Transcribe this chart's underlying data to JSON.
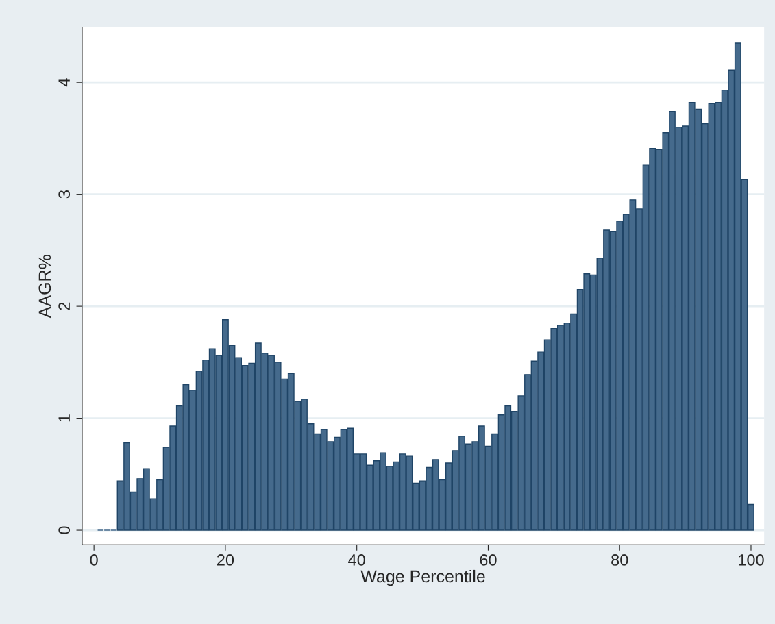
{
  "chart_data": {
    "type": "bar",
    "xlabel": "Wage Percentile",
    "ylabel": "AAGR%",
    "x": [
      1,
      2,
      3,
      4,
      5,
      6,
      7,
      8,
      9,
      10,
      11,
      12,
      13,
      14,
      15,
      16,
      17,
      18,
      19,
      20,
      21,
      22,
      23,
      24,
      25,
      26,
      27,
      28,
      29,
      30,
      31,
      32,
      33,
      34,
      35,
      36,
      37,
      38,
      39,
      40,
      41,
      42,
      43,
      44,
      45,
      46,
      47,
      48,
      49,
      50,
      51,
      52,
      53,
      54,
      55,
      56,
      57,
      58,
      59,
      60,
      61,
      62,
      63,
      64,
      65,
      66,
      67,
      68,
      69,
      70,
      71,
      72,
      73,
      74,
      75,
      76,
      77,
      78,
      79,
      80,
      81,
      82,
      83,
      84,
      85,
      86,
      87,
      88,
      89,
      90,
      91,
      92,
      93,
      94,
      95,
      96,
      97,
      98,
      99,
      100
    ],
    "values": [
      0,
      0,
      0,
      0.44,
      0.78,
      0.34,
      0.46,
      0.55,
      0.28,
      0.45,
      0.74,
      0.93,
      1.11,
      1.3,
      1.25,
      1.42,
      1.52,
      1.62,
      1.56,
      1.88,
      1.65,
      1.54,
      1.47,
      1.49,
      1.67,
      1.58,
      1.56,
      1.5,
      1.35,
      1.4,
      1.15,
      1.17,
      0.95,
      0.86,
      0.9,
      0.79,
      0.83,
      0.9,
      0.91,
      0.68,
      0.68,
      0.58,
      0.62,
      0.69,
      0.57,
      0.61,
      0.68,
      0.66,
      0.42,
      0.44,
      0.56,
      0.63,
      0.45,
      0.6,
      0.71,
      0.84,
      0.77,
      0.79,
      0.93,
      0.75,
      0.86,
      1.03,
      1.11,
      1.06,
      1.2,
      1.39,
      1.51,
      1.59,
      1.7,
      1.8,
      1.83,
      1.85,
      1.93,
      2.15,
      2.29,
      2.28,
      2.43,
      2.68,
      2.67,
      2.76,
      2.82,
      2.95,
      2.87,
      3.26,
      3.41,
      3.4,
      3.55,
      3.74,
      3.6,
      3.61,
      3.82,
      3.76,
      3.63,
      3.81,
      3.82,
      3.93,
      4.11,
      4.35,
      3.13,
      0.23
    ],
    "color": "#456a8c",
    "xlim": [
      -1.8,
      102
    ],
    "ylim": [
      -0.13,
      4.49
    ],
    "xticks": [
      0,
      20,
      40,
      60,
      80,
      100
    ],
    "yticks": [
      0,
      1,
      2,
      3,
      4
    ],
    "grid": "y"
  }
}
